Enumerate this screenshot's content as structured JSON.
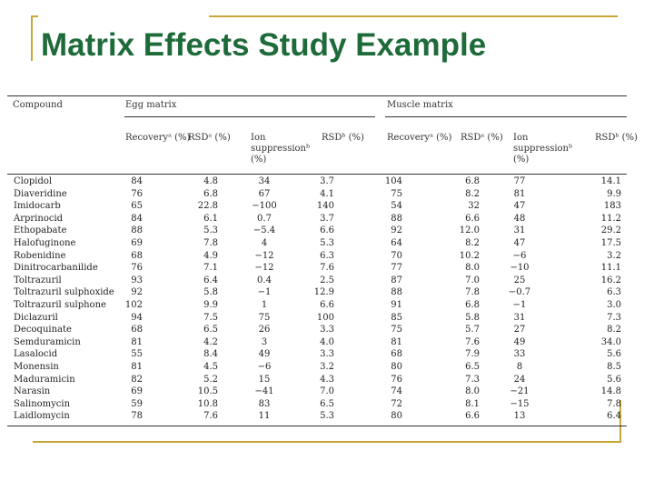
{
  "title": "Matrix Effects Study Example",
  "table": {
    "header": {
      "compound": "Compound",
      "groups": [
        "Egg matrix",
        "Muscle matrix"
      ],
      "columns": [
        "Recoveryᵃ (%)",
        "RSDᵃ (%)",
        "Ion suppressionᵇ (%)",
        "RSDᵇ (%)",
        "Recoveryᵃ (%)",
        "RSDᵃ (%)",
        "Ion suppressionᵇ (%)",
        "RSDᵇ (%)"
      ]
    },
    "rows": [
      [
        "Clopidol",
        "84",
        "4.8",
        "34",
        "3.7",
        "104",
        "6.8",
        "77",
        "14.1"
      ],
      [
        "Diaveridine",
        "76",
        "6.8",
        "67",
        "4.1",
        "75",
        "8.2",
        "81",
        "9.9"
      ],
      [
        "Imidocarb",
        "65",
        "22.8",
        "−100",
        "140",
        "54",
        "32",
        "47",
        "183"
      ],
      [
        "Arprinocid",
        "84",
        "6.1",
        "0.7",
        "3.7",
        "88",
        "6.6",
        "48",
        "11.2"
      ],
      [
        "Ethopabate",
        "88",
        "5.3",
        "−5.4",
        "6.6",
        "92",
        "12.0",
        "31",
        "29.2"
      ],
      [
        "Halofuginone",
        "69",
        "7.8",
        "4",
        "5.3",
        "64",
        "8.2",
        "47",
        "17.5"
      ],
      [
        "Robenidine",
        "68",
        "4.9",
        "−12",
        "6.3",
        "70",
        "10.2",
        "−6",
        "3.2"
      ],
      [
        "Dinitrocarbanilide",
        "76",
        "7.1",
        "−12",
        "7.6",
        "77",
        "8.0",
        "−10",
        "11.1"
      ],
      [
        "Toltrazuril",
        "93",
        "6.4",
        "0.4",
        "2.5",
        "87",
        "7.0",
        "25",
        "16.2"
      ],
      [
        "Toltrazuril sulphoxide",
        "92",
        "5.8",
        "−1",
        "12.9",
        "88",
        "7.8",
        "−0.7",
        "6.3"
      ],
      [
        "Toltrazuril sulphone",
        "102",
        "9.9",
        "1",
        "6.6",
        "91",
        "6.8",
        "−1",
        "3.0"
      ],
      [
        "Diclazuril",
        "94",
        "7.5",
        "75",
        "100",
        "85",
        "5.8",
        "31",
        "7.3"
      ],
      [
        "Decoquinate",
        "68",
        "6.5",
        "26",
        "3.3",
        "75",
        "5.7",
        "27",
        "8.2"
      ],
      [
        "Semduramicin",
        "81",
        "4.2",
        "3",
        "4.0",
        "81",
        "7.6",
        "49",
        "34.0"
      ],
      [
        "Lasalocid",
        "55",
        "8.4",
        "49",
        "3.3",
        "68",
        "7.9",
        "33",
        "5.6"
      ],
      [
        "Monensin",
        "81",
        "4.5",
        "−6",
        "3.2",
        "80",
        "6.5",
        "8",
        "8.5"
      ],
      [
        "Maduramicin",
        "82",
        "5.2",
        "15",
        "4.3",
        "76",
        "7.3",
        "24",
        "5.6"
      ],
      [
        "Narasin",
        "69",
        "10.5",
        "−41",
        "7.0",
        "74",
        "8.0",
        "−21",
        "14.8"
      ],
      [
        "Salinomycin",
        "59",
        "10.8",
        "83",
        "6.5",
        "72",
        "8.1",
        "−15",
        "7.8"
      ],
      [
        "Laidlomycin",
        "78",
        "7.6",
        "11",
        "5.3",
        "80",
        "6.6",
        "13",
        "6.4"
      ]
    ]
  }
}
